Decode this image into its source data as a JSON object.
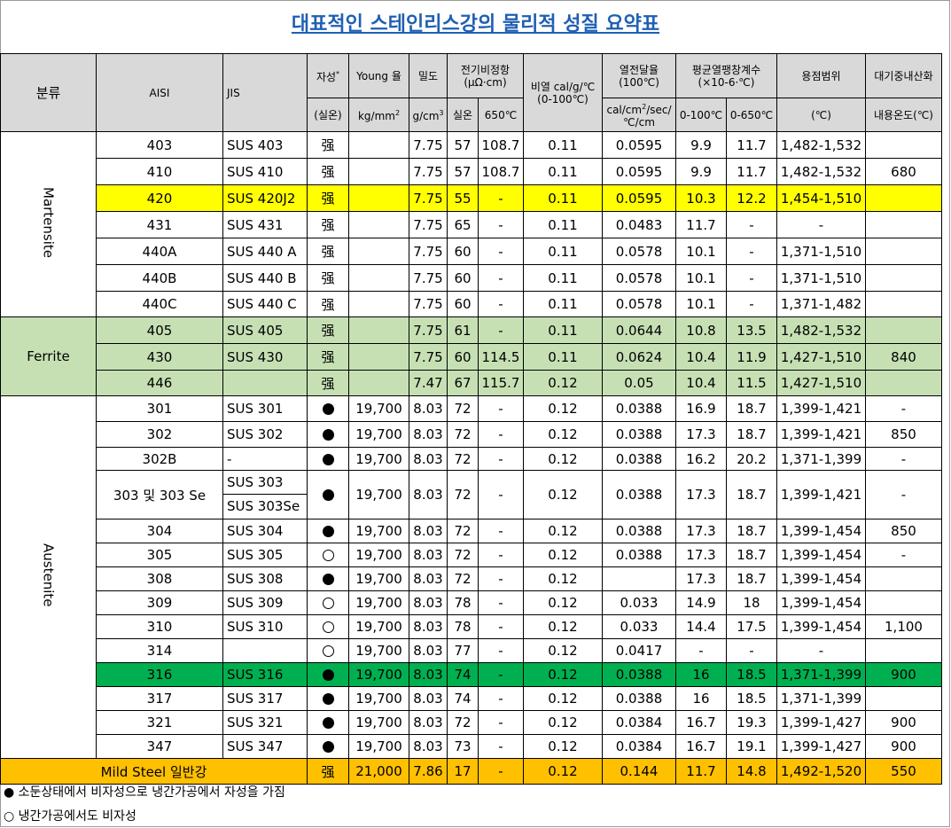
{
  "title": "대표적인 스테인리스강의 물리적 성질 요약표",
  "header": {
    "category": "분류",
    "aisi": "AISI",
    "jis": "JIS",
    "magnetic": "자성",
    "magnetic_mark": "*",
    "magnetic_sub": "(실온)",
    "young": "Young 율",
    "young_unit": "kg/mm",
    "density": "밀도",
    "density_unit": "g/cm",
    "resistivity": "전기비정항",
    "resistivity_unit": "(μΩ·cm)",
    "res_room": "실온",
    "res_650": "650℃",
    "specific_heat": "비열 cal/g/℃",
    "specific_heat_range": "(0-100℃)",
    "conductivity": "열전달율",
    "conductivity_temp": "(100℃)",
    "conductivity_unit_a": "cal/cm",
    "conductivity_unit_b": "/sec/",
    "conductivity_unit_c": "℃/cm",
    "expansion": "평균열팽창계수",
    "expansion_unit": "(×10-6·℃)",
    "exp_a": "0-100℃",
    "exp_b": "0-650℃",
    "melting": "용점범위",
    "melting_unit": "(℃)",
    "oxidation": "대기중내산화",
    "oxidation_sub": "내용온도(℃)",
    "sq": "2",
    "cube": "3"
  },
  "groups": {
    "martensite": "Martensite",
    "ferrite": "Ferrite",
    "austenite": "Austenite"
  },
  "rows": [
    {
      "aisi": "403",
      "jis": "SUS 403",
      "mag": "强",
      "young": "",
      "dens": "7.75",
      "r1": "57",
      "r2": "108.7",
      "sh": "0.11",
      "tc": "0.0595",
      "e1": "9.9",
      "e2": "11.7",
      "mp": "1,482-1,532",
      "ox": ""
    },
    {
      "aisi": "410",
      "jis": "SUS 410",
      "mag": "强",
      "young": "",
      "dens": "7.75",
      "r1": "57",
      "r2": "108.7",
      "sh": "0.11",
      "tc": "0.0595",
      "e1": "9.9",
      "e2": "11.7",
      "mp": "1,482-1,532",
      "ox": "680"
    },
    {
      "aisi": "420",
      "jis": "SUS 420J2",
      "mag": "强",
      "young": "",
      "dens": "7.75",
      "r1": "55",
      "r2": "-",
      "sh": "0.11",
      "tc": "0.0595",
      "e1": "10.3",
      "e2": "12.2",
      "mp": "1,454-1,510",
      "ox": ""
    },
    {
      "aisi": "431",
      "jis": "SUS 431",
      "mag": "强",
      "young": "",
      "dens": "7.75",
      "r1": "65",
      "r2": "-",
      "sh": "0.11",
      "tc": "0.0483",
      "e1": "11.7",
      "e2": "-",
      "mp": "-",
      "ox": ""
    },
    {
      "aisi": "440A",
      "jis": "SUS 440 A",
      "mag": "强",
      "young": "",
      "dens": "7.75",
      "r1": "60",
      "r2": "-",
      "sh": "0.11",
      "tc": "0.0578",
      "e1": "10.1",
      "e2": "-",
      "mp": "1,371-1,510",
      "ox": ""
    },
    {
      "aisi": "440B",
      "jis": "SUS 440 B",
      "mag": "强",
      "young": "",
      "dens": "7.75",
      "r1": "60",
      "r2": "-",
      "sh": "0.11",
      "tc": "0.0578",
      "e1": "10.1",
      "e2": "-",
      "mp": "1,371-1,510",
      "ox": ""
    },
    {
      "aisi": "440C",
      "jis": "SUS 440 C",
      "mag": "强",
      "young": "",
      "dens": "7.75",
      "r1": "60",
      "r2": "-",
      "sh": "0.11",
      "tc": "0.0578",
      "e1": "10.1",
      "e2": "-",
      "mp": "1,371-1,482",
      "ox": ""
    },
    {
      "aisi": "405",
      "jis": "SUS 405",
      "mag": "强",
      "young": "",
      "dens": "7.75",
      "r1": "61",
      "r2": "-",
      "sh": "0.11",
      "tc": "0.0644",
      "e1": "10.8",
      "e2": "13.5",
      "mp": "1,482-1,532",
      "ox": ""
    },
    {
      "aisi": "430",
      "jis": "SUS 430",
      "mag": "强",
      "young": "",
      "dens": "7.75",
      "r1": "60",
      "r2": "114.5",
      "sh": "0.11",
      "tc": "0.0624",
      "e1": "10.4",
      "e2": "11.9",
      "mp": "1,427-1,510",
      "ox": "840"
    },
    {
      "aisi": "446",
      "jis": "",
      "mag": "强",
      "young": "",
      "dens": "7.47",
      "r1": "67",
      "r2": "115.7",
      "sh": "0.12",
      "tc": "0.05",
      "e1": "10.4",
      "e2": "11.5",
      "mp": "1,427-1,510",
      "ox": ""
    },
    {
      "aisi": "301",
      "jis": "SUS 301",
      "mag": "dot",
      "young": "19,700",
      "dens": "8.03",
      "r1": "72",
      "r2": "-",
      "sh": "0.12",
      "tc": "0.0388",
      "e1": "16.9",
      "e2": "18.7",
      "mp": "1,399-1,421",
      "ox": "-"
    },
    {
      "aisi": "302",
      "jis": "SUS 302",
      "mag": "dot",
      "young": "19,700",
      "dens": "8.03",
      "r1": "72",
      "r2": "-",
      "sh": "0.12",
      "tc": "0.0388",
      "e1": "17.3",
      "e2": "18.7",
      "mp": "1,399-1,421",
      "ox": "850"
    },
    {
      "aisi": "302B",
      "jis": "-",
      "mag": "dot",
      "young": "19,700",
      "dens": "8.03",
      "r1": "72",
      "r2": "-",
      "sh": "0.12",
      "tc": "0.0388",
      "e1": "16.2",
      "e2": "20.2",
      "mp": "1,371-1,399",
      "ox": "-"
    },
    {
      "aisi": "303 및   303 Se",
      "jis": "SUS 303",
      "jis2": "SUS 303Se",
      "mag": "dot",
      "young": "19,700",
      "dens": "8.03",
      "r1": "72",
      "r2": "-",
      "sh": "0.12",
      "tc": "0.0388",
      "e1": "17.3",
      "e2": "18.7",
      "mp": "1,399-1,421",
      "ox": "-"
    },
    {
      "aisi": "304",
      "jis": "SUS 304",
      "mag": "dot",
      "young": "19,700",
      "dens": "8.03",
      "r1": "72",
      "r2": "-",
      "sh": "0.12",
      "tc": "0.0388",
      "e1": "17.3",
      "e2": "18.7",
      "mp": "1,399-1,454",
      "ox": "850"
    },
    {
      "aisi": "305",
      "jis": "SUS 305",
      "mag": "ring",
      "young": "19,700",
      "dens": "8.03",
      "r1": "72",
      "r2": "-",
      "sh": "0.12",
      "tc": "0.0388",
      "e1": "17.3",
      "e2": "18.7",
      "mp": "1,399-1,454",
      "ox": "-"
    },
    {
      "aisi": "308",
      "jis": "SUS 308",
      "mag": "dot",
      "young": "19,700",
      "dens": "8.03",
      "r1": "72",
      "r2": "-",
      "sh": "0.12",
      "tc": "",
      "e1": "17.3",
      "e2": "18.7",
      "mp": "1,399-1,454",
      "ox": ""
    },
    {
      "aisi": "309",
      "jis": "SUS 309",
      "mag": "ring",
      "young": "19,700",
      "dens": "8.03",
      "r1": "78",
      "r2": "-",
      "sh": "0.12",
      "tc": "0.033",
      "e1": "14.9",
      "e2": "18",
      "mp": "1,399-1,454",
      "ox": ""
    },
    {
      "aisi": "310",
      "jis": "SUS 310",
      "mag": "ring",
      "young": "19,700",
      "dens": "8.03",
      "r1": "78",
      "r2": "-",
      "sh": "0.12",
      "tc": "0.033",
      "e1": "14.4",
      "e2": "17.5",
      "mp": "1,399-1,454",
      "ox": "1,100"
    },
    {
      "aisi": "314",
      "jis": "",
      "mag": "ring",
      "young": "19,700",
      "dens": "8.03",
      "r1": "77",
      "r2": "-",
      "sh": "0.12",
      "tc": "0.0417",
      "e1": "-",
      "e2": "-",
      "mp": "-",
      "ox": ""
    },
    {
      "aisi": "316",
      "jis": "SUS 316",
      "mag": "dot",
      "young": "19,700",
      "dens": "8.03",
      "r1": "74",
      "r2": "-",
      "sh": "0.12",
      "tc": "0.0388",
      "e1": "16",
      "e2": "18.5",
      "mp": "1,371-1,399",
      "ox": "900"
    },
    {
      "aisi": "317",
      "jis": "SUS 317",
      "mag": "dot",
      "young": "19,700",
      "dens": "8.03",
      "r1": "74",
      "r2": "-",
      "sh": "0.12",
      "tc": "0.0388",
      "e1": "16",
      "e2": "18.5",
      "mp": "1,371-1,399",
      "ox": ""
    },
    {
      "aisi": "321",
      "jis": "SUS 321",
      "mag": "dot",
      "young": "19,700",
      "dens": "8.03",
      "r1": "72",
      "r2": "-",
      "sh": "0.12",
      "tc": "0.0384",
      "e1": "16.7",
      "e2": "19.3",
      "mp": "1,399-1,427",
      "ox": "900"
    },
    {
      "aisi": "347",
      "jis": "SUS 347",
      "mag": "dot",
      "young": "19,700",
      "dens": "8.03",
      "r1": "73",
      "r2": "-",
      "sh": "0.12",
      "tc": "0.0384",
      "e1": "16.7",
      "e2": "19.1",
      "mp": "1,399-1,427",
      "ox": "900"
    }
  ],
  "mild_steel": {
    "label": "Mild Steel 일반강",
    "mag": "强",
    "young": "21,000",
    "dens": "7.86",
    "r1": "17",
    "r2": "-",
    "sh": "0.12",
    "tc": "0.144",
    "e1": "11.7",
    "e2": "14.8",
    "mp": "1,492-1,520",
    "ox": "550"
  },
  "notes": {
    "filled": "● 소둔상태에서 비자성으로 냉간가공에서 자성을 가짐",
    "hollow": "○ 냉간가공에서도 비자성"
  },
  "colors": {
    "title": "#1f5fb4",
    "header_bg": "#d9d9d9",
    "highlight_yellow": "#ffff00",
    "ferrite_green": "#c6e0b4",
    "highlight_green": "#00b050",
    "mild_steel_orange": "#ffc000"
  }
}
